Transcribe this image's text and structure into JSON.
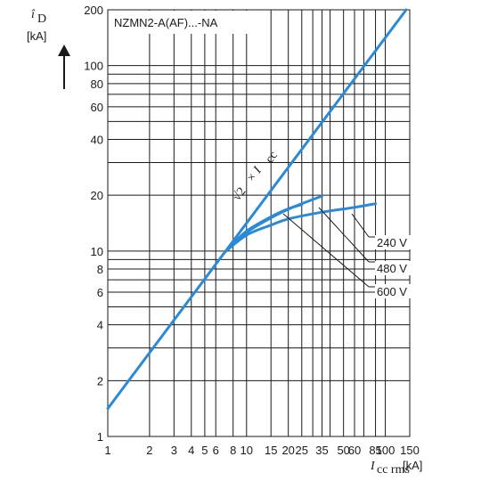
{
  "chart_data": {
    "type": "line",
    "title": "NZMN2-A(AF)...-NA",
    "x_axis": {
      "label_main": "I",
      "label_sub": "cc rms",
      "label_unit": "[kA]",
      "scale": "log",
      "range": [
        1,
        150
      ],
      "tick_values": [
        1,
        2,
        3,
        4,
        5,
        6,
        8,
        10,
        15,
        20,
        25,
        35,
        50,
        60,
        85,
        100,
        150
      ],
      "tick_labels": [
        "1",
        "2",
        "3",
        "4",
        "5",
        "6",
        "8",
        "10",
        "15",
        "20",
        "25",
        "35",
        "50",
        "60",
        "85",
        "100",
        "150"
      ]
    },
    "y_axis": {
      "label_main": "î",
      "label_sub": "D",
      "label_unit": "[kA]",
      "scale": "log",
      "range": [
        1,
        200
      ],
      "tick_values": [
        1,
        2,
        4,
        6,
        8,
        10,
        20,
        40,
        60,
        80,
        100,
        200
      ],
      "tick_labels": [
        "1",
        "2",
        "4",
        "6",
        "8",
        "10",
        "20",
        "40",
        "60",
        "80",
        "100",
        "200"
      ]
    },
    "grid": true,
    "series": [
      {
        "name": "√2 × Icc",
        "points": [
          [
            1,
            1.414
          ],
          [
            141.4,
            200
          ]
        ]
      },
      {
        "name": "240 V",
        "points": [
          [
            7,
            9.9
          ],
          [
            10,
            12.2
          ],
          [
            15,
            13.8
          ],
          [
            20,
            14.9
          ],
          [
            35,
            16.2
          ],
          [
            60,
            17.2
          ],
          [
            85,
            18.0
          ]
        ]
      },
      {
        "name": "480 V",
        "points": [
          [
            7,
            9.9
          ],
          [
            10,
            12.6
          ],
          [
            15,
            15.1
          ],
          [
            20,
            16.8
          ],
          [
            25,
            18.0
          ],
          [
            35,
            19.8
          ]
        ]
      },
      {
        "name": "600 V",
        "points": [
          [
            7,
            9.9
          ],
          [
            10,
            12.8
          ],
          [
            15,
            15.3
          ],
          [
            20,
            16.9
          ],
          [
            25,
            17.8
          ]
        ]
      }
    ],
    "annotations": {
      "diagonal_label_a": "√2",
      "diagonal_label_b": "× I",
      "diagonal_label_sub": "cc",
      "voltage_labels": [
        "240 V",
        "480 V",
        "600 V"
      ]
    }
  },
  "colors": {
    "curve": "#2a8ad6",
    "grid": "#1a1a1a",
    "background": "#ffffff"
  },
  "icons": {
    "y_axis_arrow": "arrow-up-icon"
  }
}
